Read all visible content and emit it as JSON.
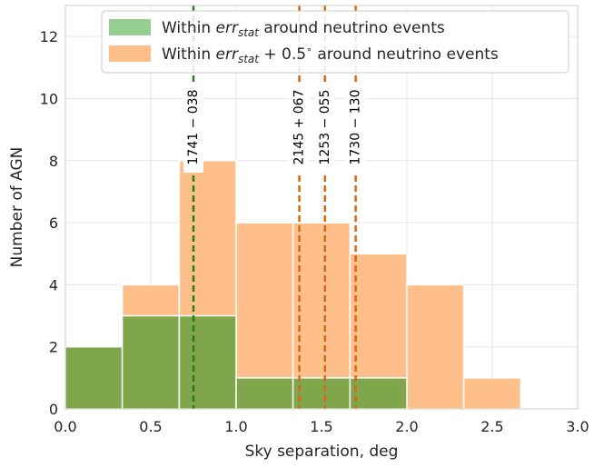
{
  "chart_data": {
    "type": "bar",
    "xlabel": "Sky separation, deg",
    "ylabel": "Number of AGN",
    "xlim": [
      0.0,
      3.0
    ],
    "ylim": [
      0,
      13
    ],
    "xticks": [
      0.0,
      0.5,
      1.0,
      1.5,
      2.0,
      2.5,
      3.0
    ],
    "xtick_labels": [
      "0.0",
      "0.5",
      "1.0",
      "1.5",
      "2.0",
      "2.5",
      "3.0"
    ],
    "yticks": [
      0,
      2,
      4,
      6,
      8,
      10,
      12
    ],
    "ytick_labels": [
      "0",
      "2",
      "4",
      "6",
      "8",
      "10",
      "12"
    ],
    "grid": true,
    "legend_position": "top-center",
    "bin_edges": [
      0.0,
      0.333,
      0.667,
      1.0,
      1.333,
      1.667,
      2.0,
      2.333,
      2.667,
      3.0
    ],
    "series": [
      {
        "name": "Within err_stat + 0.5° around neutrino events",
        "legend_parts": [
          "Within ",
          "err",
          "stat",
          " + 0.5",
          "∘",
          " around neutrino events"
        ],
        "color": "#ffbf8a",
        "values": [
          0,
          4,
          8,
          6,
          6,
          5,
          4,
          1,
          0
        ]
      },
      {
        "name": "Within err_stat around neutrino events",
        "legend_parts": [
          "Within ",
          "err",
          "stat",
          " around neutrino events"
        ],
        "color": "#7fa64a",
        "legend_color": "#96cf8f",
        "values": [
          2,
          3,
          3,
          1,
          1,
          1,
          0,
          0,
          0
        ]
      }
    ],
    "vlines": [
      {
        "x": 0.75,
        "label": "1741 − 038",
        "color": "#2a7d1d"
      },
      {
        "x": 1.37,
        "label": "2145 + 067",
        "color": "#d96614"
      },
      {
        "x": 1.52,
        "label": "1253 − 055",
        "color": "#d96614"
      },
      {
        "x": 1.7,
        "label": "1730 − 130",
        "color": "#d96614"
      }
    ]
  }
}
